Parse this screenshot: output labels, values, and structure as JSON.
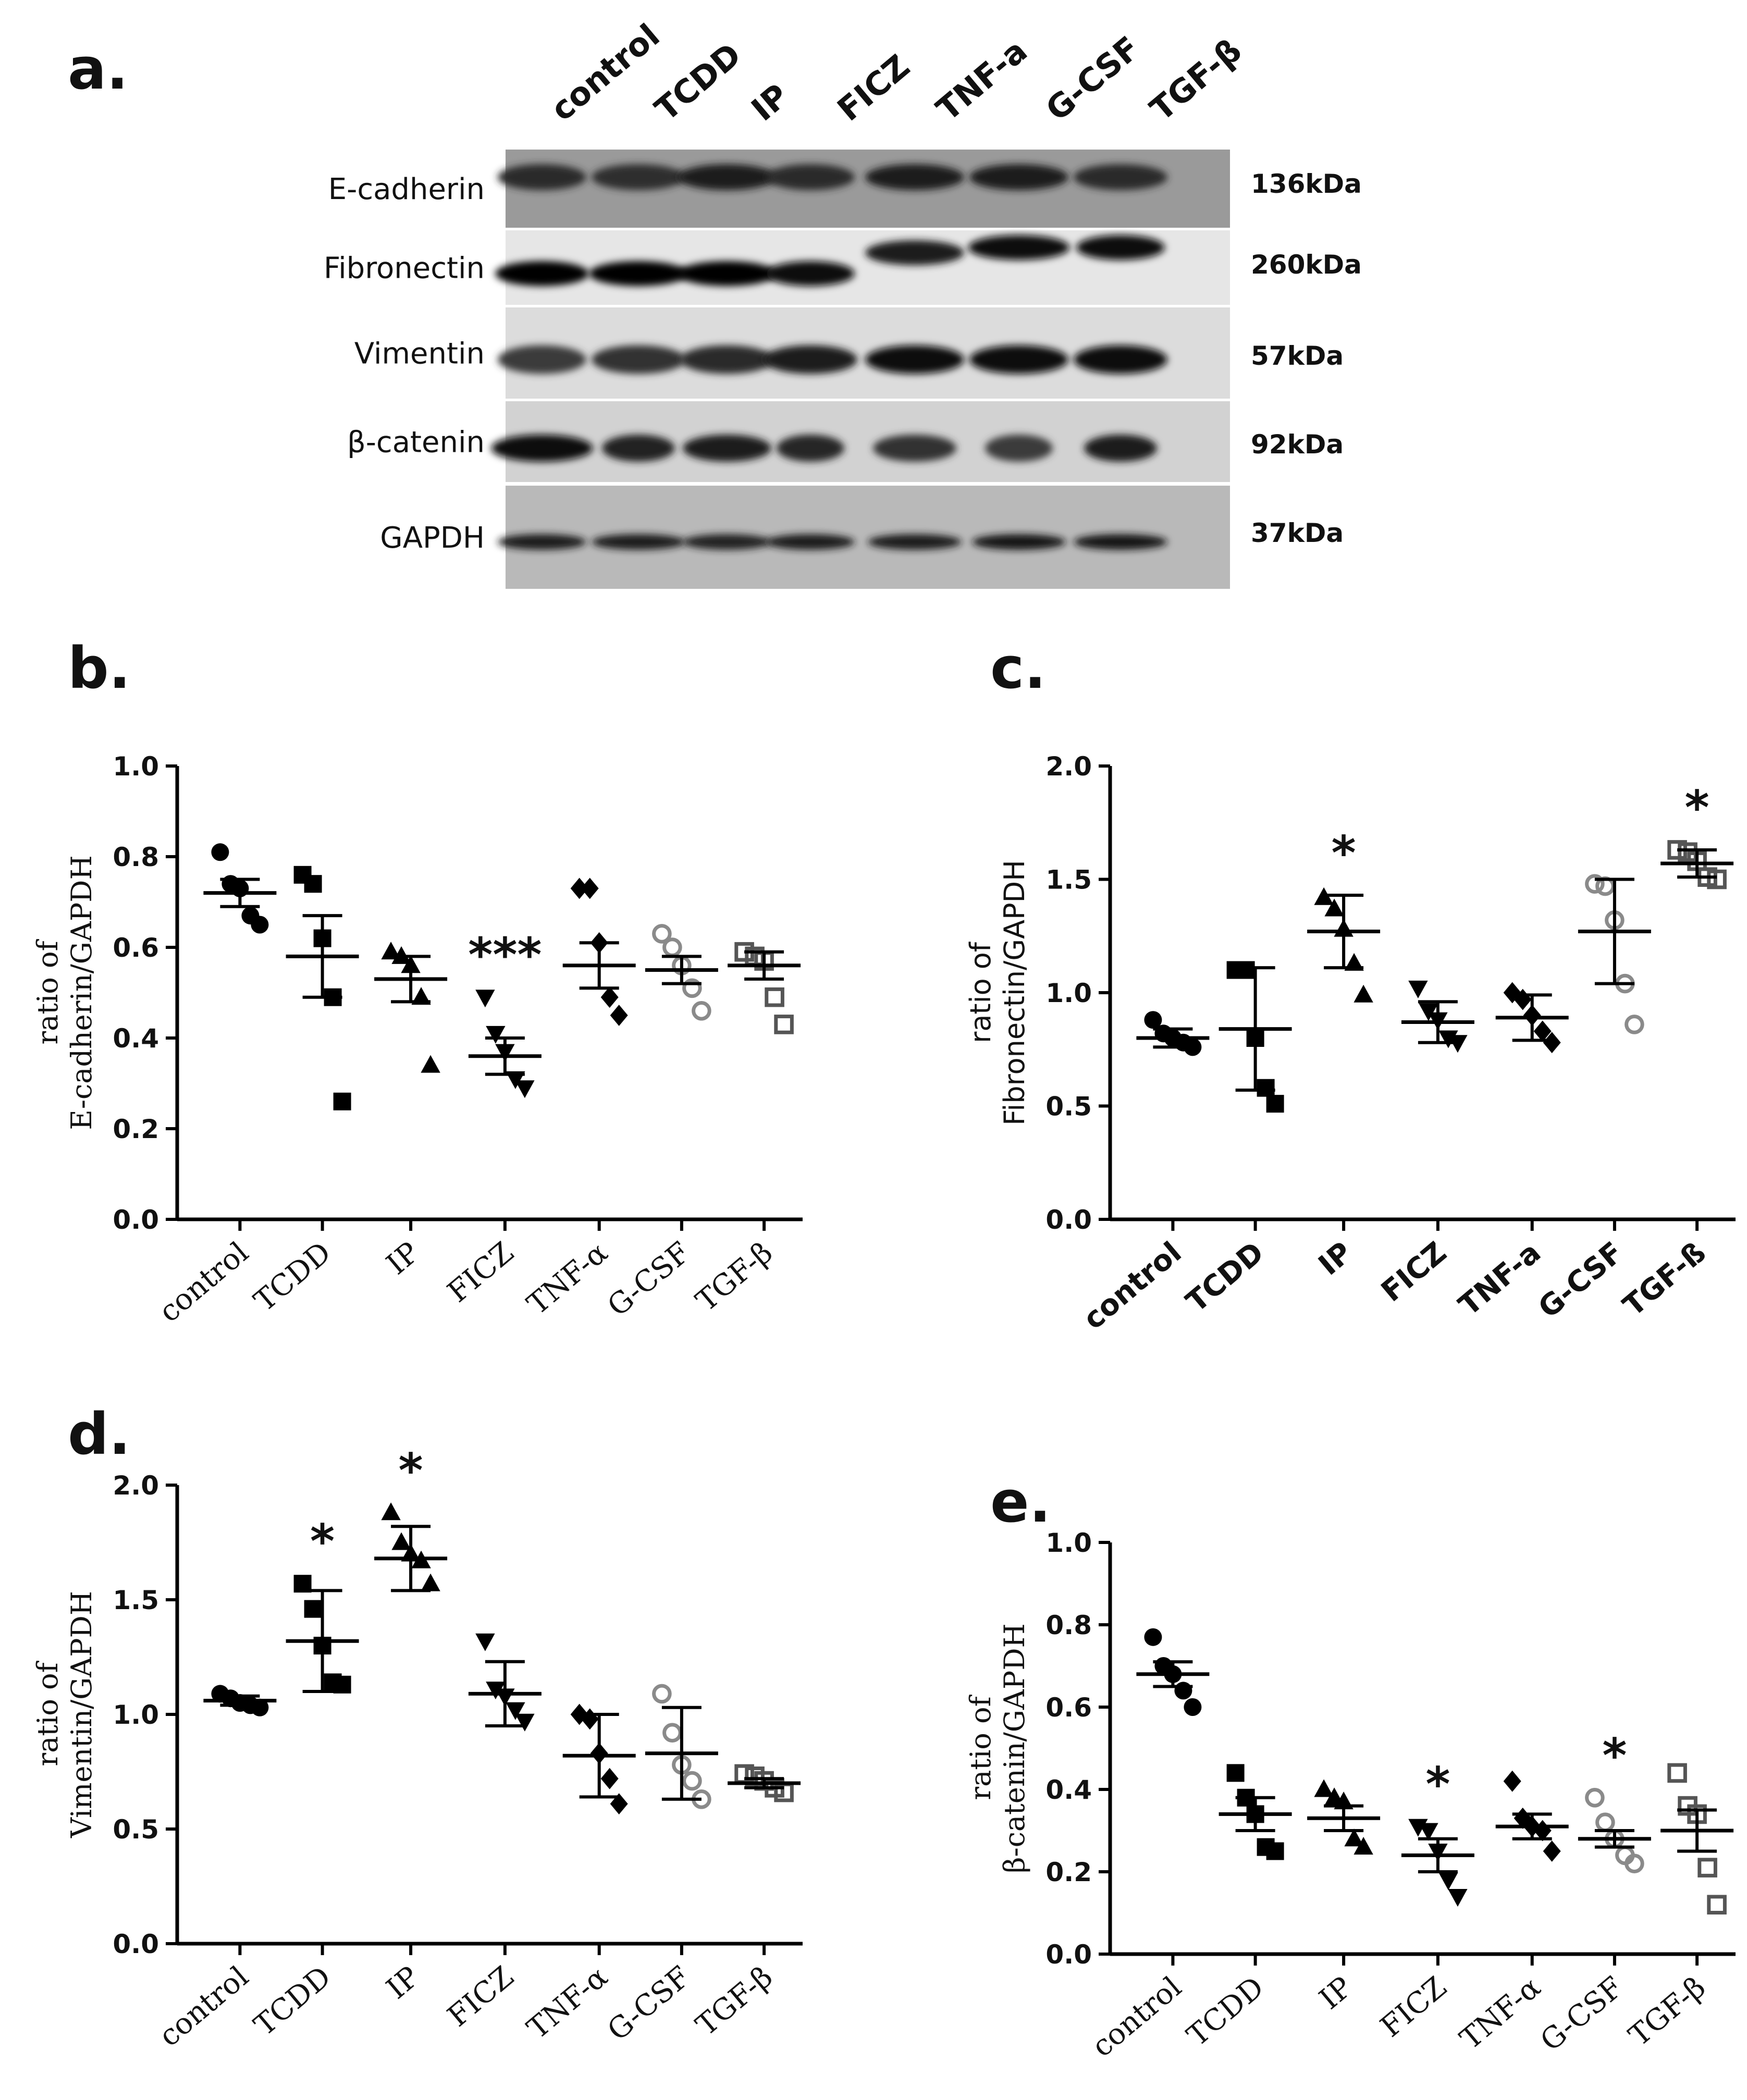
{
  "panels": {
    "a": {
      "letter": "a."
    },
    "b": {
      "letter": "b."
    },
    "c": {
      "letter": "c."
    },
    "d": {
      "letter": "d."
    },
    "e": {
      "letter": "e."
    }
  },
  "blot": {
    "lanes": [
      "control",
      "TCDD",
      "IP",
      "FICZ",
      "TNF-a",
      "G-CSF",
      "TGF-β"
    ],
    "rows": [
      {
        "protein": "E-cadherin",
        "kda": "136kDa"
      },
      {
        "protein": "Fibronectin",
        "kda": "260kDa"
      },
      {
        "protein": "Vimentin",
        "kda": "57kDa"
      },
      {
        "protein": "β-catenin",
        "kda": "92kDa"
      },
      {
        "protein": "GAPDH",
        "kda": "37kDa"
      }
    ]
  },
  "chart_data": [
    {
      "panel": "b",
      "type": "scatter",
      "categories": [
        "control",
        "TCDD",
        "IP",
        "FICZ",
        "TNF-α",
        "G-CSF",
        "TGF-β"
      ],
      "ylabel_line1": "ratio of",
      "ylabel_line2": "E-cadherin/GAPDH",
      "ylim": [
        0.0,
        1.0
      ],
      "yticks": [
        "0.0",
        "0.2",
        "0.4",
        "0.6",
        "0.8",
        "1.0"
      ],
      "points": [
        [
          0.81,
          0.74,
          0.73,
          0.67,
          0.65
        ],
        [
          0.76,
          0.74,
          0.62,
          0.49,
          0.26
        ],
        [
          0.59,
          0.58,
          0.56,
          0.49,
          0.34
        ],
        [
          0.49,
          0.41,
          0.37,
          0.31,
          0.29
        ],
        [
          0.73,
          0.73,
          0.61,
          0.49,
          0.45
        ],
        [
          0.63,
          0.6,
          0.56,
          0.51,
          0.46
        ],
        [
          0.59,
          0.58,
          0.57,
          0.49,
          0.43
        ]
      ],
      "means": [
        0.72,
        0.58,
        0.53,
        0.36,
        0.56,
        0.55,
        0.56
      ],
      "errors": [
        0.03,
        0.09,
        0.05,
        0.04,
        0.05,
        0.03,
        0.03
      ],
      "significance": [
        "",
        "",
        "",
        "***",
        "",
        "",
        ""
      ]
    },
    {
      "panel": "c",
      "type": "scatter",
      "categories": [
        "control",
        "TCDD",
        "IP",
        "FICZ",
        "TNF-a",
        "G-CSF",
        "TGF-ß"
      ],
      "ylabel_line1": "ratio of",
      "ylabel_line2": "Fibronectin/GAPDH",
      "ylim": [
        0.0,
        2.0
      ],
      "yticks": [
        "0.0",
        "0.5",
        "1.0",
        "1.5",
        "2.0"
      ],
      "points": [
        [
          0.88,
          0.82,
          0.8,
          0.78,
          0.76
        ],
        [
          1.1,
          1.1,
          0.8,
          0.58,
          0.51
        ],
        [
          1.42,
          1.37,
          1.28,
          1.13,
          0.99
        ],
        [
          1.02,
          0.92,
          0.88,
          0.8,
          0.78
        ],
        [
          1.0,
          0.97,
          0.9,
          0.83,
          0.78
        ],
        [
          1.48,
          1.47,
          1.32,
          1.04,
          0.86
        ],
        [
          1.63,
          1.62,
          1.58,
          1.51,
          1.5
        ]
      ],
      "means": [
        0.8,
        0.84,
        1.27,
        0.87,
        0.89,
        1.27,
        1.57
      ],
      "errors": [
        0.04,
        0.27,
        0.16,
        0.09,
        0.1,
        0.23,
        0.06
      ],
      "significance": [
        "",
        "",
        "*",
        "",
        "",
        "",
        "*"
      ]
    },
    {
      "panel": "d",
      "type": "scatter",
      "categories": [
        "control",
        "TCDD",
        "IP",
        "FICZ",
        "TNF-α",
        "G-CSF",
        "TGF-β"
      ],
      "ylabel_line1": "ratio of",
      "ylabel_line2": "Vimentin/GAPDH",
      "ylim": [
        0.0,
        2.0
      ],
      "yticks": [
        "0.0",
        "0.5",
        "1.0",
        "1.5",
        "2.0"
      ],
      "points": [
        [
          1.09,
          1.07,
          1.05,
          1.04,
          1.03
        ],
        [
          1.57,
          1.46,
          1.3,
          1.14,
          1.13
        ],
        [
          1.88,
          1.75,
          1.7,
          1.67,
          1.57
        ],
        [
          1.32,
          1.11,
          1.08,
          1.02,
          0.97
        ],
        [
          1.0,
          0.98,
          0.83,
          0.72,
          0.61
        ],
        [
          1.09,
          0.92,
          0.78,
          0.71,
          0.63
        ],
        [
          0.74,
          0.73,
          0.71,
          0.68,
          0.66
        ]
      ],
      "means": [
        1.06,
        1.32,
        1.68,
        1.09,
        0.82,
        0.83,
        0.7
      ],
      "errors": [
        0.02,
        0.22,
        0.14,
        0.14,
        0.18,
        0.2,
        0.02
      ],
      "significance": [
        "",
        "*",
        "*",
        "",
        "",
        "",
        ""
      ]
    },
    {
      "panel": "e",
      "type": "scatter",
      "categories": [
        "control",
        "TCDD",
        "IP",
        "FICZ",
        "TNF-α",
        "G-CSF",
        "TGF-β"
      ],
      "ylabel_line1": "ratio of",
      "ylabel_line2": "β-catenin/GAPDH",
      "ylim": [
        0.0,
        1.0
      ],
      "yticks": [
        "0.0",
        "0.2",
        "0.4",
        "0.6",
        "0.8",
        "1.0"
      ],
      "points": [
        [
          0.77,
          0.7,
          0.68,
          0.64,
          0.6
        ],
        [
          0.44,
          0.38,
          0.34,
          0.26,
          0.25
        ],
        [
          0.4,
          0.38,
          0.37,
          0.28,
          0.26
        ],
        [
          0.31,
          0.3,
          0.25,
          0.18,
          0.14
        ],
        [
          0.42,
          0.33,
          0.31,
          0.3,
          0.25
        ],
        [
          0.38,
          0.32,
          0.28,
          0.24,
          0.22
        ],
        [
          0.44,
          0.36,
          0.34,
          0.21,
          0.12
        ]
      ],
      "means": [
        0.68,
        0.34,
        0.33,
        0.24,
        0.31,
        0.28,
        0.3
      ],
      "errors": [
        0.03,
        0.04,
        0.03,
        0.04,
        0.03,
        0.02,
        0.05
      ],
      "significance": [
        "",
        "",
        "",
        "*",
        "",
        "*",
        ""
      ]
    }
  ]
}
